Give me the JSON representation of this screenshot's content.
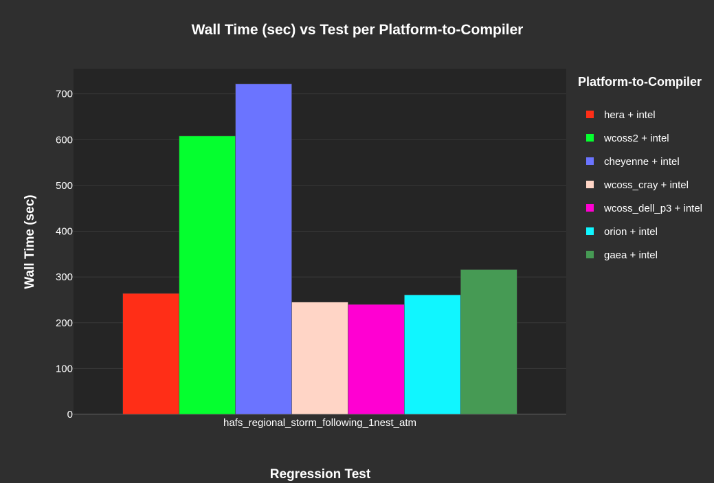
{
  "chart_data": {
    "type": "bar",
    "title": "Wall Time (sec) vs Test per Platform-to-Compiler",
    "xlabel": "Regression Test",
    "ylabel": "Wall Time (sec)",
    "categories": [
      "hafs_regional_storm_following_1nest_atm"
    ],
    "ylim": [
      0,
      755
    ],
    "yticks": [
      0,
      100,
      200,
      300,
      400,
      500,
      600,
      700
    ],
    "grid": true,
    "legend": {
      "title": "Platform-to-Compiler",
      "position": "right"
    },
    "series": [
      {
        "name": "hera + intel",
        "color": "#ff2e17",
        "values": [
          264
        ]
      },
      {
        "name": "wcoss2 + intel",
        "color": "#05ff2f",
        "values": [
          608
        ]
      },
      {
        "name": "cheyenne + intel",
        "color": "#6b74ff",
        "values": [
          722
        ]
      },
      {
        "name": "wcoss_cray + intel",
        "color": "#ffd5c6",
        "values": [
          245
        ]
      },
      {
        "name": "wcoss_dell_p3 + intel",
        "color": "#ff00d2",
        "values": [
          240
        ]
      },
      {
        "name": "orion + intel",
        "color": "#10f6ff",
        "values": [
          261
        ]
      },
      {
        "name": "gaea + intel",
        "color": "#469a54",
        "values": [
          316
        ]
      }
    ]
  }
}
